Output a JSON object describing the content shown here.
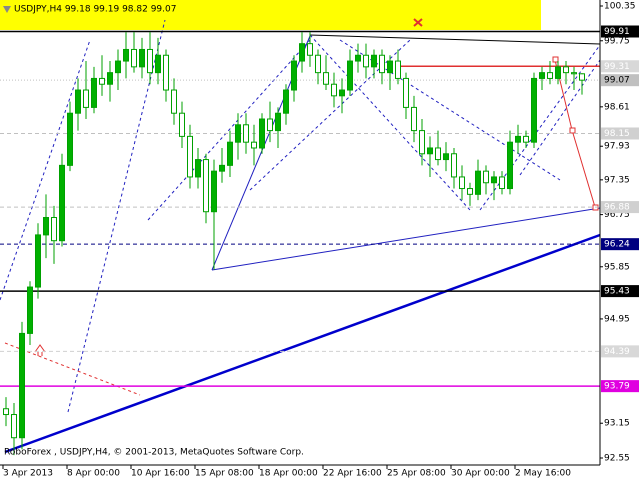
{
  "chart_data": {
    "type": "candlestick",
    "title": "USDJPY,H4  99.18 99.19 98.82 99.07",
    "footer": "RoboForex , USDJPY,H4, © 2001-2013, MetaQuotes Software Corp.",
    "ylim": [
      92.55,
      100.35
    ],
    "yticks": [
      100.35,
      99.75,
      98.61,
      97.93,
      97.35,
      96.75,
      95.85,
      94.95,
      93.15,
      92.55
    ],
    "xticks": [
      {
        "value": 0,
        "label": "3 Apr 2013"
      },
      {
        "value": 8,
        "label": "8 Apr 00:00"
      },
      {
        "value": 16,
        "label": "10 Apr 16:00"
      },
      {
        "value": 24,
        "label": "15 Apr 08:00"
      },
      {
        "value": 32,
        "label": "18 Apr 00:00"
      },
      {
        "value": 40,
        "label": "22 Apr 16:00"
      },
      {
        "value": 48,
        "label": "25 Apr 08:00"
      },
      {
        "value": 56,
        "label": "30 Apr 00:00"
      },
      {
        "value": 64,
        "label": "2 May 16:00"
      }
    ],
    "color_up": "#00b000",
    "color_down": "#ffffff",
    "wick_color": "#00a000",
    "open": [
      93.4,
      93.3,
      92.9,
      94.7,
      95.5,
      96.4,
      96.7,
      96.3,
      97.6,
      98.5,
      98.9,
      98.6,
      99.1,
      99.0,
      99.2,
      99.4,
      99.6,
      99.3,
      99.6,
      99.2,
      99.5,
      98.9,
      98.5,
      98.1,
      97.4,
      97.7,
      96.8,
      97.5,
      97.6,
      98.0,
      98.3,
      98.0,
      97.9,
      98.4,
      98.2,
      98.5,
      98.9,
      99.4,
      99.7,
      99.5,
      99.2,
      99.0,
      98.8,
      98.9,
      99.4,
      99.5,
      99.3,
      99.5,
      99.2,
      99.4,
      99.1,
      98.6,
      98.2,
      97.8,
      97.9,
      97.7,
      97.8,
      97.4,
      97.2,
      97.1,
      97.5,
      97.3,
      97.4,
      97.2,
      98.0,
      98.1,
      98.0,
      99.1,
      99.2,
      99.1,
      99.3,
      99.2,
      99.18
    ],
    "high": [
      93.6,
      93.5,
      94.9,
      95.6,
      96.6,
      97.1,
      96.9,
      97.8,
      98.7,
      99.1,
      99.4,
      99.3,
      99.5,
      99.4,
      99.6,
      99.9,
      99.9,
      99.8,
      99.9,
      99.8,
      99.6,
      99.1,
      98.7,
      98.3,
      97.9,
      97.8,
      97.7,
      97.9,
      98.2,
      98.5,
      98.5,
      98.3,
      98.5,
      98.7,
      98.6,
      99.0,
      99.5,
      99.9,
      99.9,
      99.6,
      99.5,
      99.2,
      99.1,
      99.6,
      99.7,
      99.7,
      99.6,
      99.6,
      99.5,
      99.6,
      99.2,
      98.8,
      98.4,
      98.1,
      98.2,
      98.0,
      97.9,
      97.6,
      97.3,
      97.7,
      97.6,
      97.5,
      97.5,
      98.2,
      98.3,
      98.2,
      99.2,
      99.3,
      99.4,
      99.4,
      99.4,
      99.3,
      99.19
    ],
    "low": [
      93.1,
      92.6,
      92.7,
      94.5,
      95.3,
      96.0,
      95.9,
      96.2,
      97.5,
      98.2,
      98.4,
      98.5,
      98.8,
      98.7,
      98.9,
      99.1,
      99.2,
      99.1,
      99.0,
      99.0,
      98.7,
      98.3,
      97.9,
      97.2,
      97.2,
      96.6,
      95.8,
      97.3,
      97.4,
      97.7,
      97.8,
      97.6,
      97.8,
      98.0,
      97.9,
      98.3,
      98.7,
      99.2,
      99.3,
      99.0,
      98.9,
      98.6,
      98.5,
      98.8,
      99.2,
      99.1,
      99.1,
      99.0,
      98.9,
      99.0,
      98.4,
      98.0,
      97.6,
      97.4,
      97.6,
      97.5,
      97.2,
      97.0,
      96.9,
      97.0,
      97.1,
      97.0,
      97.1,
      97.1,
      97.8,
      97.9,
      97.9,
      98.9,
      99.0,
      99.0,
      99.0,
      98.9,
      98.82
    ],
    "close": [
      93.3,
      92.9,
      94.7,
      95.5,
      96.4,
      96.7,
      96.3,
      97.6,
      98.5,
      98.9,
      98.6,
      99.1,
      99.0,
      99.2,
      99.4,
      99.6,
      99.3,
      99.6,
      99.2,
      99.5,
      98.9,
      98.5,
      98.1,
      97.4,
      97.7,
      96.8,
      97.5,
      97.6,
      98.0,
      98.3,
      98.0,
      97.9,
      98.4,
      98.2,
      98.5,
      98.9,
      99.4,
      99.7,
      99.5,
      99.2,
      99.0,
      98.8,
      98.9,
      99.4,
      99.5,
      99.3,
      99.5,
      99.2,
      99.4,
      99.1,
      98.6,
      98.2,
      97.8,
      97.9,
      97.7,
      97.8,
      97.4,
      97.2,
      97.1,
      97.5,
      97.3,
      97.4,
      97.2,
      98.0,
      98.1,
      98.0,
      99.1,
      99.2,
      99.1,
      99.3,
      99.2,
      99.18,
      99.07
    ],
    "levels": [
      {
        "value": 99.91,
        "color": "#000000",
        "style": "solid",
        "label_bg": "#000000",
        "label_color": "#ffffff"
      },
      {
        "value": 99.31,
        "color": "#e03030",
        "style": "solid",
        "label_bg": "#d8d8d8",
        "label_color": "#ffffff"
      },
      {
        "value": 99.07,
        "color": "#c0c0c0",
        "style": "dotted",
        "label_bg": "#c0c0c0",
        "label_color": "#000000"
      },
      {
        "value": 98.15,
        "color": "#c0c0c0",
        "style": "dashed",
        "label_bg": "#d0d0d0",
        "label_color": "#ffffff"
      },
      {
        "value": 96.88,
        "color": "#c0c0c0",
        "style": "dashed",
        "label_bg": "#d0d0d0",
        "label_color": "#ffffff"
      },
      {
        "value": 96.24,
        "color": "#000080",
        "style": "dashed",
        "label_bg": "#000080",
        "label_color": "#ffffff"
      },
      {
        "value": 95.43,
        "color": "#000000",
        "style": "solid",
        "label_bg": "#000000",
        "label_color": "#ffffff"
      },
      {
        "value": 94.39,
        "color": "#d0d0d0",
        "style": "dashed",
        "label_bg": "#d8d8d8",
        "label_color": "#ffffff"
      },
      {
        "value": 93.79,
        "color": "#e000e0",
        "style": "solid",
        "label_bg": "#e000e0",
        "label_color": "#ffffff"
      }
    ]
  }
}
